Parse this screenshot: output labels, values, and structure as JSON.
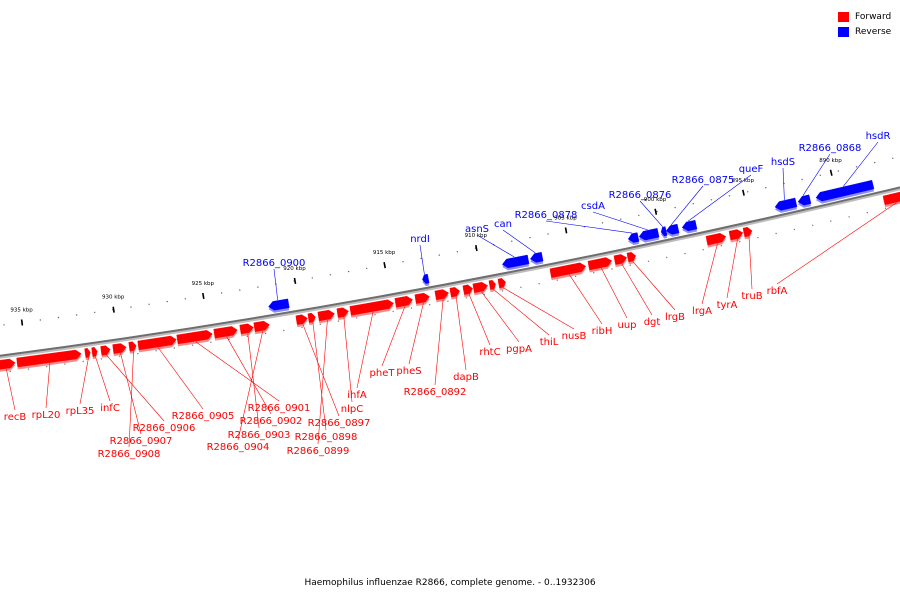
{
  "legend": {
    "forward_label": "Forward",
    "reverse_label": "Reverse",
    "forward_color": "#ff0000",
    "reverse_color": "#0000ff"
  },
  "caption": "Haemophilus influenzae R2866, complete genome. - 0..1932306",
  "scale": {
    "unit": "kbp",
    "tick_labels": [
      "935 kbp",
      "930 kbp",
      "925 kbp",
      "920 kbp",
      "915 kbp",
      "910 kbp",
      "905 kbp",
      "900 kbp",
      "895 kbp",
      "890 kbp"
    ]
  },
  "genes": {
    "forward": [
      "recB",
      "rpL20",
      "rpL35",
      "infC",
      "R2866_0906",
      "R2866_0907",
      "R2866_0908",
      "R2866_0905",
      "R2866_0901",
      "R2866_0902",
      "R2866_0903",
      "R2866_0904",
      "R2866_0897",
      "R2866_0898",
      "R2866_0899",
      "nlpC",
      "ihfA",
      "pheT",
      "pheS",
      "R2866_0892",
      "dapB",
      "rhtC",
      "pgpA",
      "thiL",
      "nusB",
      "ribH",
      "uup",
      "dgt",
      "lrgB",
      "lrgA",
      "tyrA",
      "truB",
      "rbfA"
    ],
    "reverse": [
      "R2866_0900",
      "nrdI",
      "asnS",
      "can",
      "R2866_0878",
      "csdA",
      "R2866_0876",
      "R2866_0875",
      "queF",
      "hsdS",
      "R2866_0868",
      "hsdR"
    ]
  }
}
